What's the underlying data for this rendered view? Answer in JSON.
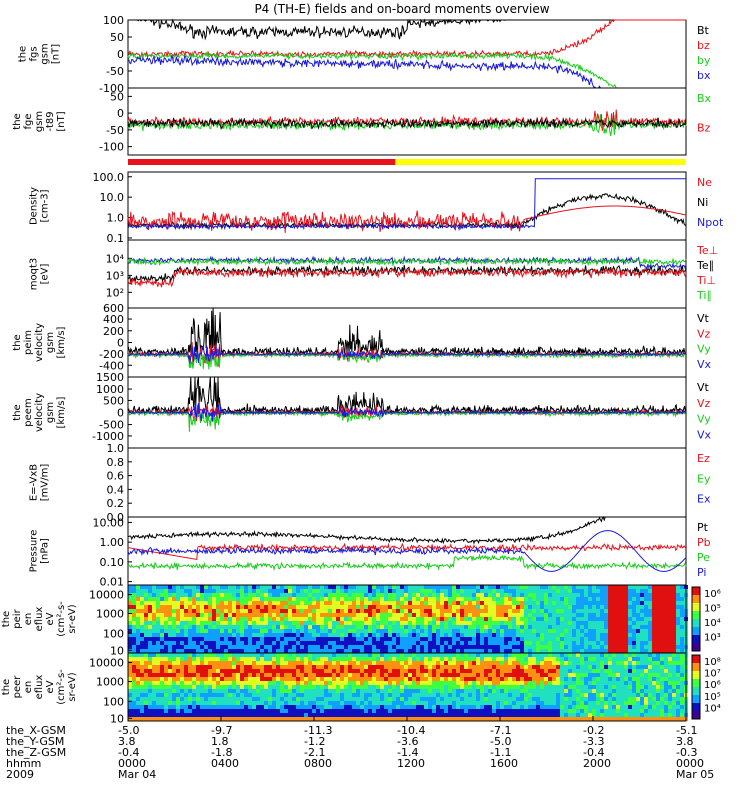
{
  "title": "P4 (TH-E) fields and on-board moments overview",
  "colors": {
    "black": "#000000",
    "red": "#e8121b",
    "green": "#1ccc1c",
    "blue": "#1a1ad8",
    "yellow": "#ffff00"
  },
  "chart_data": {
    "type": "line",
    "x_axis": {
      "ticks": [
        "0000",
        "0400",
        "0800",
        "1200",
        "1600",
        "2000",
        "0000"
      ],
      "rows": [
        {
          "label": "the_X-GSM",
          "values": [
            "-5.0",
            "-9.7",
            "-11.3",
            "-10.4",
            "-7.1",
            "-0.2",
            "-5.1"
          ]
        },
        {
          "label": "the_Y-GSM",
          "values": [
            "3.8",
            "1.8",
            "-1.2",
            "-3.6",
            "-5.0",
            "-3.3",
            "3.8"
          ]
        },
        {
          "label": "the_Z-GSM",
          "values": [
            "-0.4",
            "-1.8",
            "-2.1",
            "-1.4",
            "-1.1",
            "-0.4",
            "-0.3"
          ]
        },
        {
          "label": "hhmm",
          "values": [
            "0000",
            "0400",
            "0800",
            "1200",
            "1600",
            "2000",
            "0000"
          ]
        },
        {
          "label": "2009",
          "values": [
            "Mar 04",
            "",
            "",
            "",
            "",
            "",
            "Mar 05"
          ]
        }
      ]
    },
    "panels": [
      {
        "id": "fgs",
        "ylabel": [
          "the",
          "fgs",
          "gsm",
          "[nT]"
        ],
        "yticks": [
          "100",
          "50",
          "0",
          "-50",
          "-100"
        ],
        "ylim": [
          -100,
          100
        ],
        "legend": [
          {
            "name": "Bt",
            "color": "#000000"
          },
          {
            "name": "bz",
            "color": "#e8121b"
          },
          {
            "name": "by",
            "color": "#1ccc1c"
          },
          {
            "name": "bx",
            "color": "#1a1ad8"
          }
        ]
      },
      {
        "id": "fge",
        "ylabel": [
          "the",
          "fge",
          "gsm",
          "-t89",
          "[nT]"
        ],
        "yticks": [
          "50",
          "0",
          "-50",
          "-100"
        ],
        "ylim": [
          -125,
          75
        ],
        "legend": [
          {
            "name": "Bx",
            "color": "#1ccc1c"
          },
          {
            "name": "Bz",
            "color": "#e8121b"
          }
        ]
      },
      {
        "id": "mode_bar",
        "segments": [
          {
            "from": 0,
            "to": 11.5,
            "color": "#e8121b"
          },
          {
            "from": 11.5,
            "to": 24,
            "color": "#ffff00"
          }
        ]
      },
      {
        "id": "density",
        "ylabel": [
          "Density",
          "[cm-3]"
        ],
        "yticks": [
          "100.0",
          "10.0",
          "1.0",
          "0.1"
        ],
        "scale": "log",
        "legend": [
          {
            "name": "Ne",
            "color": "#e8121b"
          },
          {
            "name": "Ni",
            "color": "#000000"
          },
          {
            "name": "Npot",
            "color": "#1a1ad8"
          }
        ]
      },
      {
        "id": "temp",
        "ylabel": [
          "moqt3",
          "[eV]"
        ],
        "yticks": [
          "10⁴",
          "10³",
          "10²"
        ],
        "scale": "log",
        "legend": [
          {
            "name": "Te⊥",
            "color": "#e8121b"
          },
          {
            "name": "Te∥",
            "color": "#000000"
          },
          {
            "name": "Ti⊥",
            "color": "#e8121b"
          },
          {
            "name": "Ti∥",
            "color": "#1ccc1c"
          }
        ]
      },
      {
        "id": "peim",
        "ylabel": [
          "the",
          "peim",
          "velocity",
          "gsm",
          "[km/s]"
        ],
        "yticks": [
          "600",
          "400",
          "200",
          "0",
          "-200",
          "-400"
        ],
        "ylim": [
          -400,
          600
        ],
        "legend": [
          {
            "name": "Vt",
            "color": "#000000"
          },
          {
            "name": "Vz",
            "color": "#e8121b"
          },
          {
            "name": "Vy",
            "color": "#1ccc1c"
          },
          {
            "name": "Vx",
            "color": "#1a1ad8"
          }
        ]
      },
      {
        "id": "peem",
        "ylabel": [
          "the",
          "peem",
          "velocity",
          "gsm",
          "[km/s]"
        ],
        "yticks": [
          "1500",
          "1000",
          "500",
          "0",
          "-500",
          "-1000"
        ],
        "ylim": [
          -1500,
          1500
        ],
        "legend": [
          {
            "name": "Vt",
            "color": "#000000"
          },
          {
            "name": "Vz",
            "color": "#e8121b"
          },
          {
            "name": "Vy",
            "color": "#1ccc1c"
          },
          {
            "name": "Vx",
            "color": "#1a1ad8"
          }
        ]
      },
      {
        "id": "efield",
        "ylabel": [
          "E=-VxB",
          "[mV/m]"
        ],
        "yticks": [
          "1.0",
          "0.8",
          "0.6",
          "0.4",
          "0.2",
          "0.0"
        ],
        "ylim": [
          0,
          1
        ],
        "legend": [
          {
            "name": "Ez",
            "color": "#e8121b"
          },
          {
            "name": "Ey",
            "color": "#1ccc1c"
          },
          {
            "name": "Ex",
            "color": "#1a1ad8"
          }
        ]
      },
      {
        "id": "pressure",
        "ylabel": [
          "Pressure",
          "[nPa]"
        ],
        "yticks": [
          "10.00",
          "1.00",
          "0.10",
          "0.01"
        ],
        "scale": "log",
        "legend": [
          {
            "name": "Pt",
            "color": "#000000"
          },
          {
            "name": "Pb",
            "color": "#e8121b"
          },
          {
            "name": "Pe",
            "color": "#1ccc1c"
          },
          {
            "name": "Pi",
            "color": "#1a1ad8"
          }
        ]
      },
      {
        "id": "peir",
        "type": "heatmap",
        "ylabel": [
          "the",
          "peir",
          "en",
          "eflux",
          "eV",
          "(cm²-s-",
          "sr-eV)"
        ],
        "yticks": [
          "10000",
          "1000",
          "100",
          "10"
        ],
        "colorbar": [
          "10⁶",
          "10⁵",
          "10⁴",
          "10³"
        ]
      },
      {
        "id": "peer",
        "type": "heatmap",
        "ylabel": [
          "the",
          "peer",
          "en",
          "eflux",
          "eV",
          "(cm²-s-",
          "sr-eV)"
        ],
        "yticks": [
          "10000",
          "1000",
          "100",
          "10"
        ],
        "colorbar": [
          "10⁸",
          "10⁷",
          "10⁶",
          "10⁵",
          "10⁴"
        ]
      }
    ]
  }
}
